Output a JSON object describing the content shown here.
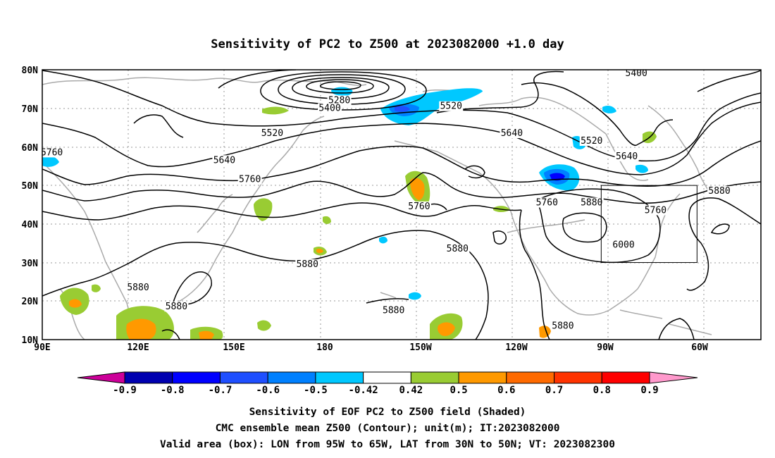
{
  "title": "Sensitivity of PC2 to Z500 at 2023082000 +1.0 day",
  "map": {
    "lon_ticks": [
      "90E",
      "120E",
      "150E",
      "180",
      "150W",
      "120W",
      "90W",
      "60W"
    ],
    "lat_ticks": [
      "80N",
      "70N",
      "60N",
      "50N",
      "40N",
      "30N",
      "20N",
      "10N"
    ],
    "valid_box": {
      "lon_min": -95,
      "lon_max": -65,
      "lat_min": 30,
      "lat_max": 50
    }
  },
  "contour_labels": [
    {
      "text": "5400",
      "lon": -84,
      "lat": 78.5
    },
    {
      "text": "5280",
      "lon": -177,
      "lat": 71.5
    },
    {
      "text": "5400",
      "lon": -180,
      "lat": 69.5
    },
    {
      "text": "5520",
      "lon": -142,
      "lat": 70
    },
    {
      "text": "5520",
      "lon": 162,
      "lat": 63
    },
    {
      "text": "5640",
      "lon": -123,
      "lat": 63
    },
    {
      "text": "5520",
      "lon": -98,
      "lat": 61
    },
    {
      "text": "5640",
      "lon": 147,
      "lat": 56
    },
    {
      "text": "5640",
      "lon": -87,
      "lat": 57
    },
    {
      "text": "5760",
      "lon": 93,
      "lat": 58
    },
    {
      "text": "5760",
      "lon": 155,
      "lat": 51
    },
    {
      "text": "5760",
      "lon": -152,
      "lat": 44
    },
    {
      "text": "5760",
      "lon": -112,
      "lat": 45
    },
    {
      "text": "5880",
      "lon": -98,
      "lat": 45
    },
    {
      "text": "5760",
      "lon": -78,
      "lat": 43
    },
    {
      "text": "5880",
      "lon": -58,
      "lat": 48
    },
    {
      "text": "6000",
      "lon": -88,
      "lat": 34
    },
    {
      "text": "5880",
      "lon": -140,
      "lat": 33
    },
    {
      "text": "5880",
      "lon": 173,
      "lat": 29
    },
    {
      "text": "5880",
      "lon": 120,
      "lat": 23
    },
    {
      "text": "5880",
      "lon": 132,
      "lat": 18
    },
    {
      "text": "5880",
      "lon": -160,
      "lat": 17
    },
    {
      "text": "5880",
      "lon": -107,
      "lat": 13
    }
  ],
  "colorbar": {
    "labels": [
      "-0.9",
      "-0.8",
      "-0.7",
      "-0.6",
      "-0.5",
      "-0.42",
      "0.42",
      "0.5",
      "0.6",
      "0.7",
      "0.8",
      "0.9"
    ],
    "colors": [
      "#0000b0",
      "#0000ff",
      "#1f4fff",
      "#0080ff",
      "#00c8ff",
      "#ffffff",
      "#99cc33",
      "#ff9900",
      "#ff6a00",
      "#ff3300",
      "#ff0000"
    ],
    "low_color": "#cc0099",
    "high_color": "#ff99cc"
  },
  "footer": {
    "line1": "Sensitivity of EOF PC2 to Z500 field (Shaded)",
    "line2": "CMC ensemble mean Z500 (Contour); unit(m); IT:2023082000",
    "line3": "Valid area (box): LON from 95W to 65W, LAT from 30N to 50N; VT: 2023082300"
  }
}
